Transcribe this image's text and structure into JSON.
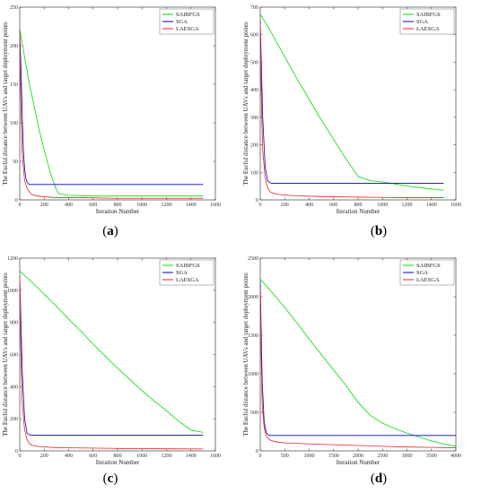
{
  "captions": {
    "a": {
      "open": "(",
      "letter": "a",
      "close": ")"
    },
    "b": {
      "open": "(",
      "letter": "b",
      "close": ")"
    },
    "c": {
      "open": "(",
      "letter": "c",
      "close": ")"
    },
    "d": {
      "open": "(",
      "letter": "d",
      "close": ")"
    }
  },
  "colors": {
    "SAIBFGS": "#00dd00",
    "SGA": "#0000cc",
    "LAESGA": "#ee2222"
  },
  "chart_data": [
    {
      "id": "a",
      "type": "line",
      "xlabel": "Iteration Number",
      "ylabel": "The  Euclid distance between  UAVs and  target deployment points",
      "xlim": [
        0,
        1600
      ],
      "ylim": [
        0,
        250
      ],
      "xticks": [
        0,
        200,
        400,
        600,
        800,
        1000,
        1200,
        1400,
        1600
      ],
      "yticks": [
        0,
        50,
        100,
        150,
        200,
        250
      ],
      "legend": "top-right",
      "series": [
        {
          "name": "SAIBFGS",
          "x": [
            0,
            40,
            80,
            120,
            160,
            200,
            250,
            300,
            320,
            400,
            600,
            800,
            1000,
            1200,
            1500
          ],
          "y": [
            222,
            185,
            150,
            120,
            90,
            65,
            35,
            13,
            8,
            6,
            5,
            5,
            5,
            5,
            5
          ]
        },
        {
          "name": "SGA",
          "x": [
            0,
            10,
            20,
            30,
            40,
            50,
            60,
            70,
            80,
            100,
            200,
            400,
            600,
            800,
            1000,
            1200,
            1400,
            1500
          ],
          "y": [
            220,
            170,
            110,
            65,
            40,
            28,
            23,
            21,
            20,
            20,
            20,
            20,
            20,
            20,
            20,
            20,
            20,
            20
          ]
        },
        {
          "name": "LAESGA",
          "x": [
            0,
            10,
            20,
            40,
            60,
            80,
            100,
            150,
            200,
            300,
            500,
            800,
            1000,
            1200,
            1500
          ],
          "y": [
            220,
            120,
            60,
            25,
            15,
            10,
            7,
            5,
            4,
            3,
            3,
            2,
            2,
            2,
            2
          ]
        }
      ]
    },
    {
      "id": "b",
      "type": "line",
      "xlabel": "Iteration Number",
      "ylabel": "The  Euclid distance between  UAVs and  target deployment points",
      "xlim": [
        0,
        1600
      ],
      "ylim": [
        0,
        700
      ],
      "xticks": [
        0,
        200,
        400,
        600,
        800,
        1000,
        1200,
        1400,
        1600
      ],
      "yticks": [
        0,
        100,
        200,
        300,
        400,
        500,
        600,
        700
      ],
      "legend": "top-right",
      "series": [
        {
          "name": "SAIBFGS",
          "x": [
            0,
            100,
            200,
            300,
            400,
            500,
            600,
            700,
            800,
            900,
            1000,
            1100,
            1200,
            1300,
            1400,
            1500
          ],
          "y": [
            675,
            600,
            520,
            440,
            365,
            290,
            220,
            150,
            85,
            70,
            65,
            58,
            50,
            45,
            40,
            35
          ]
        },
        {
          "name": "SGA",
          "x": [
            0,
            20,
            40,
            60,
            80,
            100,
            200,
            400,
            600,
            800,
            1000,
            1200,
            1400,
            1500
          ],
          "y": [
            650,
            300,
            120,
            70,
            62,
            60,
            60,
            60,
            60,
            60,
            60,
            60,
            60,
            60
          ]
        },
        {
          "name": "LAESGA",
          "x": [
            0,
            10,
            20,
            40,
            60,
            80,
            100,
            150,
            200,
            300,
            500,
            800,
            1000,
            1200,
            1500
          ],
          "y": [
            640,
            350,
            180,
            80,
            45,
            30,
            25,
            20,
            18,
            15,
            12,
            10,
            9,
            8,
            8
          ]
        }
      ]
    },
    {
      "id": "c",
      "type": "line",
      "xlabel": "Iteration Number",
      "ylabel": "The  Euclid distance between  UAVs and  target deployment points",
      "xlim": [
        0,
        1600
      ],
      "ylim": [
        0,
        1200
      ],
      "xticks": [
        0,
        200,
        400,
        600,
        800,
        1000,
        1200,
        1400,
        1600
      ],
      "yticks": [
        0,
        200,
        400,
        600,
        800,
        1000,
        1200
      ],
      "legend": "top-right",
      "series": [
        {
          "name": "SAIBFGS",
          "x": [
            0,
            100,
            200,
            300,
            400,
            500,
            600,
            700,
            800,
            900,
            1000,
            1100,
            1200,
            1300,
            1400,
            1500
          ],
          "y": [
            1120,
            1050,
            975,
            900,
            820,
            745,
            665,
            590,
            515,
            445,
            375,
            310,
            250,
            185,
            130,
            115
          ]
        },
        {
          "name": "SGA",
          "x": [
            0,
            20,
            40,
            60,
            80,
            100,
            200,
            400,
            600,
            800,
            1000,
            1200,
            1400,
            1500
          ],
          "y": [
            1090,
            500,
            200,
            110,
            100,
            98,
            98,
            98,
            98,
            98,
            98,
            98,
            98,
            98
          ]
        },
        {
          "name": "LAESGA",
          "x": [
            0,
            10,
            20,
            40,
            60,
            80,
            100,
            150,
            200,
            300,
            500,
            800,
            1000,
            1200,
            1500
          ],
          "y": [
            1100,
            600,
            300,
            130,
            70,
            45,
            35,
            28,
            25,
            20,
            18,
            15,
            14,
            13,
            12
          ]
        }
      ]
    },
    {
      "id": "d",
      "type": "line",
      "xlabel": "Iteration Number",
      "ylabel": "The  Euclid distance between  UAVs and  target deployment points",
      "xlim": [
        0,
        4000
      ],
      "ylim": [
        0,
        2500
      ],
      "xticks": [
        0,
        500,
        1000,
        1500,
        2000,
        2500,
        3000,
        3500,
        4000
      ],
      "yticks": [
        0,
        500,
        1000,
        1500,
        2000,
        2500
      ],
      "legend": "top-right",
      "series": [
        {
          "name": "SAIBFGS",
          "x": [
            0,
            250,
            500,
            750,
            1000,
            1250,
            1500,
            1750,
            2000,
            2250,
            2500,
            2750,
            3000,
            3250,
            3500,
            3750,
            4000
          ],
          "y": [
            2230,
            2050,
            1860,
            1660,
            1450,
            1250,
            1050,
            850,
            630,
            460,
            360,
            290,
            230,
            180,
            130,
            90,
            60
          ]
        },
        {
          "name": "SGA",
          "x": [
            0,
            40,
            80,
            120,
            160,
            200,
            400,
            800,
            1200,
            1600,
            2000,
            2400,
            2800,
            3200,
            3600,
            4000
          ],
          "y": [
            2200,
            900,
            380,
            240,
            210,
            200,
            200,
            200,
            200,
            200,
            200,
            200,
            200,
            200,
            200,
            200
          ]
        },
        {
          "name": "LAESGA",
          "x": [
            0,
            20,
            40,
            80,
            120,
            160,
            200,
            300,
            400,
            600,
            1000,
            1500,
            2000,
            2500,
            3000,
            3500,
            4000
          ],
          "y": [
            2100,
            1200,
            600,
            300,
            200,
            160,
            140,
            120,
            110,
            100,
            90,
            80,
            70,
            60,
            50,
            45,
            40
          ]
        }
      ]
    }
  ]
}
